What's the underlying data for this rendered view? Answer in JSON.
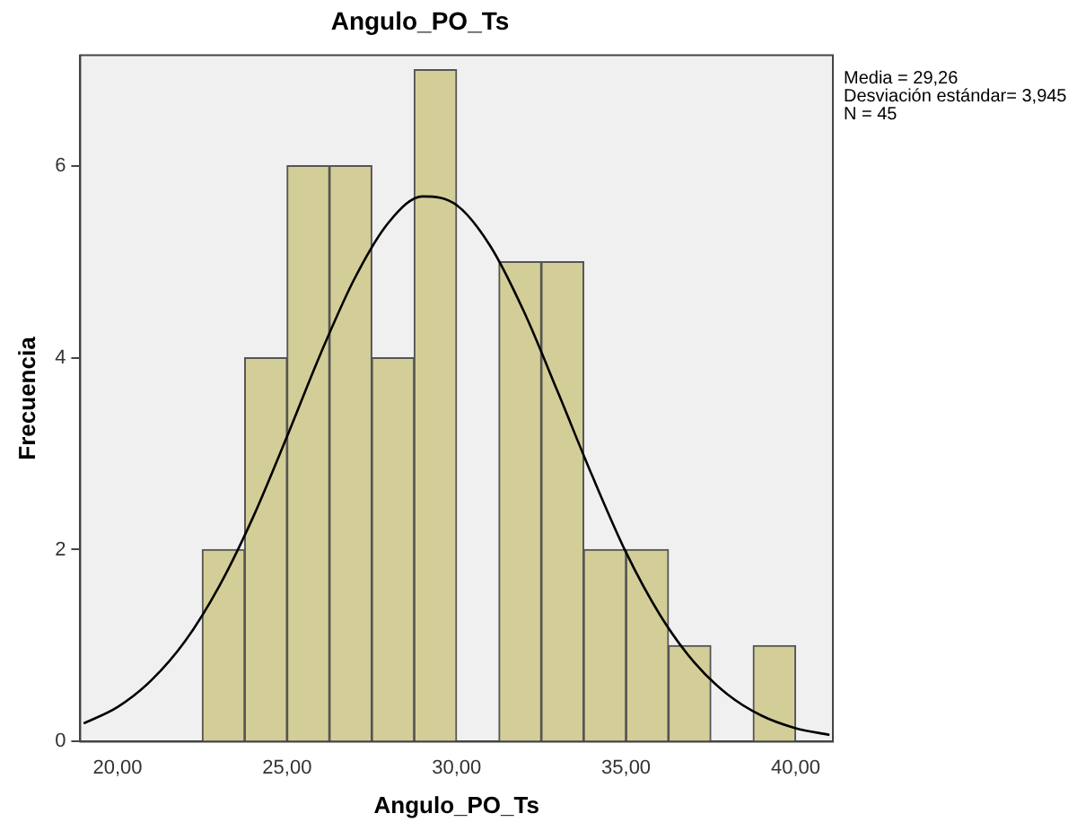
{
  "chart_data": {
    "type": "histogram",
    "title": "Angulo_PO_Ts",
    "xlabel": "Angulo_PO_Ts",
    "ylabel": "Frecuencia",
    "annotations": [
      "Media = 29,26",
      "Desviación estándar= 3,945",
      "N = 45"
    ],
    "series": [
      {
        "color": "#d3ce97",
        "bins": [
          22.5,
          23.75,
          25,
          26.25,
          27.5,
          28.75,
          30,
          31.25,
          32.5,
          33.75,
          35,
          36.25,
          37.5,
          38.75,
          40
        ],
        "values": [
          2,
          4,
          6,
          6,
          4,
          7,
          0,
          5,
          5,
          2,
          2,
          1,
          0,
          1
        ]
      },
      {
        "type": "line",
        "color": "#000000",
        "x": [
          19,
          20,
          21,
          22,
          23,
          24,
          25,
          26,
          27,
          28,
          29,
          30,
          31,
          32,
          33,
          34,
          35,
          36,
          37,
          38,
          39,
          40,
          41
        ],
        "values": [
          0.19,
          0.36,
          0.64,
          1.05,
          1.62,
          2.34,
          3.18,
          4.05,
          4.83,
          5.41,
          5.68,
          5.59,
          5.16,
          4.47,
          3.63,
          2.77,
          1.97,
          1.32,
          0.83,
          0.49,
          0.27,
          0.14,
          0.07
        ]
      }
    ],
    "xlim": [
      18.9,
      41.1
    ],
    "ylim": [
      0,
      7.15
    ],
    "xticks": [
      {
        "value": 20,
        "label": "20,00"
      },
      {
        "value": 25,
        "label": "25,00"
      },
      {
        "value": 30,
        "label": "30,00"
      },
      {
        "value": 35,
        "label": "35,00"
      },
      {
        "value": 40,
        "label": "40,00"
      }
    ],
    "yticks": [
      0,
      2,
      4,
      6
    ]
  }
}
